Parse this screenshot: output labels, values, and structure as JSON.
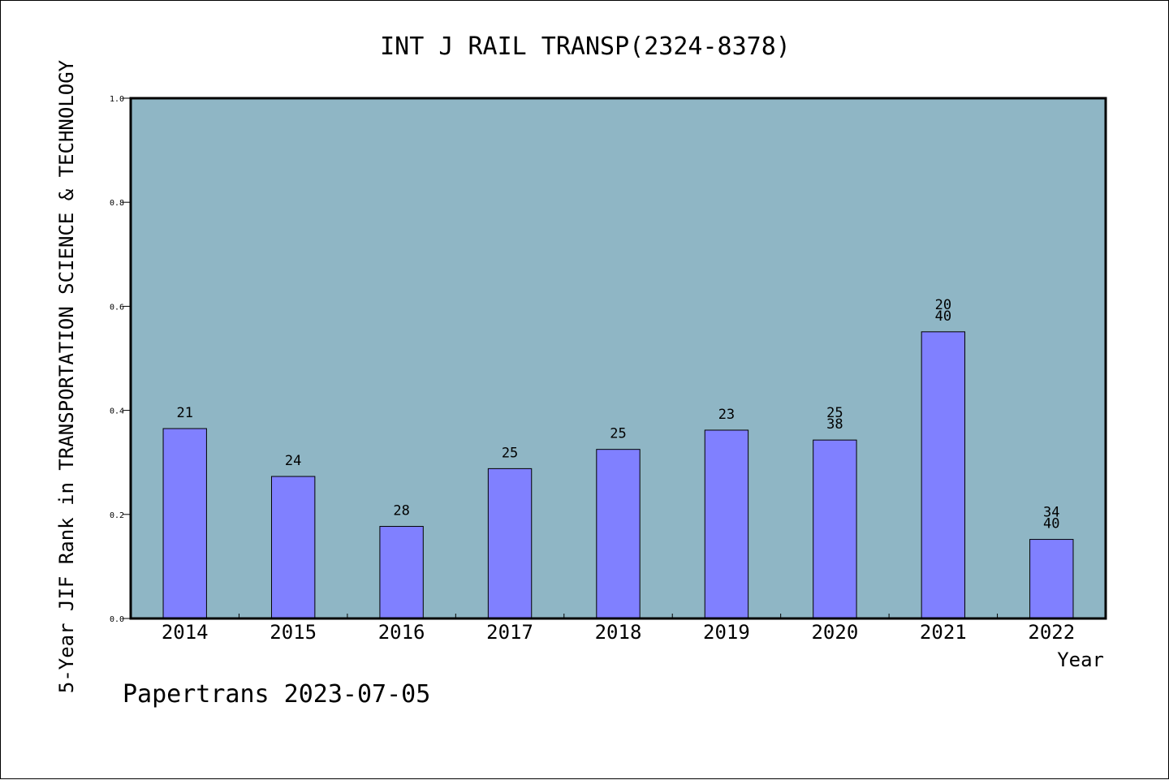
{
  "chart_data": {
    "type": "bar",
    "title": "INT J RAIL TRANSP(2324-8378)",
    "xlabel": "Year",
    "ylabel": "5-Year JIF Rank in TRANSPORTATION SCIENCE & TECHNOLOGY",
    "categories": [
      "2014",
      "2015",
      "2016",
      "2017",
      "2018",
      "2019",
      "2020",
      "2021",
      "2022"
    ],
    "values": [
      0.365,
      0.273,
      0.177,
      0.288,
      0.325,
      0.362,
      0.343,
      0.551,
      0.152
    ],
    "labels": [
      [
        "21"
      ],
      [
        "24"
      ],
      [
        "28"
      ],
      [
        "25"
      ],
      [
        "25"
      ],
      [
        "23"
      ],
      [
        "25",
        "38"
      ],
      [
        "20",
        "40"
      ],
      [
        "34",
        "40"
      ]
    ],
    "ylim": [
      0,
      1.0
    ],
    "yticks": [
      "0.0",
      "0.2",
      "0.4",
      "0.6",
      "0.8",
      "1.0"
    ],
    "grid": false,
    "legend": "none"
  },
  "footer": "Papertrans 2023-07-05",
  "colors": {
    "plot_background": "#8fb6c5",
    "bar_fill": "#8080ff",
    "bar_stroke": "#000000",
    "frame": "#000000"
  }
}
